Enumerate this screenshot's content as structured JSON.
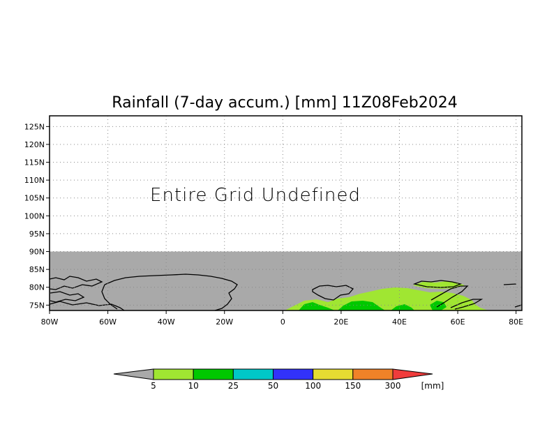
{
  "title": "Rainfall (7-day accum.) [mm] 11Z08Feb2024",
  "overlay_text": "Entire Grid Undefined",
  "map": {
    "lon_range": [
      -80,
      82
    ],
    "lat_range": [
      73.5,
      128
    ],
    "data_top_lat": 90,
    "mask_color": "#a9a9a9",
    "grid": true,
    "x_ticks": [
      {
        "value": -80,
        "label": "80W"
      },
      {
        "value": -60,
        "label": "60W"
      },
      {
        "value": -40,
        "label": "40W"
      },
      {
        "value": -20,
        "label": "20W"
      },
      {
        "value": 0,
        "label": "0"
      },
      {
        "value": 20,
        "label": "20E"
      },
      {
        "value": 40,
        "label": "40E"
      },
      {
        "value": 60,
        "label": "60E"
      },
      {
        "value": 80,
        "label": "80E"
      }
    ],
    "y_ticks": [
      {
        "value": 75,
        "label": "75N"
      },
      {
        "value": 80,
        "label": "80N"
      },
      {
        "value": 85,
        "label": "85N"
      },
      {
        "value": 90,
        "label": "90N"
      },
      {
        "value": 95,
        "label": "95N"
      },
      {
        "value": 100,
        "label": "100N"
      },
      {
        "value": 105,
        "label": "105N"
      },
      {
        "value": 110,
        "label": "110N"
      },
      {
        "value": 115,
        "label": "115N"
      },
      {
        "value": 120,
        "label": "120N"
      },
      {
        "value": 125,
        "label": "125N"
      }
    ]
  },
  "colorbar": {
    "unit": "[mm]",
    "under_color": "#a9a9a9",
    "over_color": "#f03c3c",
    "bins": [
      {
        "color": "#a0e632"
      },
      {
        "color": "#00c800"
      },
      {
        "color": "#00c8c8"
      },
      {
        "color": "#3232fa"
      },
      {
        "color": "#e6dc32"
      },
      {
        "color": "#f08228"
      }
    ],
    "labels": [
      "5",
      "10",
      "25",
      "50",
      "100",
      "150",
      "300"
    ]
  }
}
